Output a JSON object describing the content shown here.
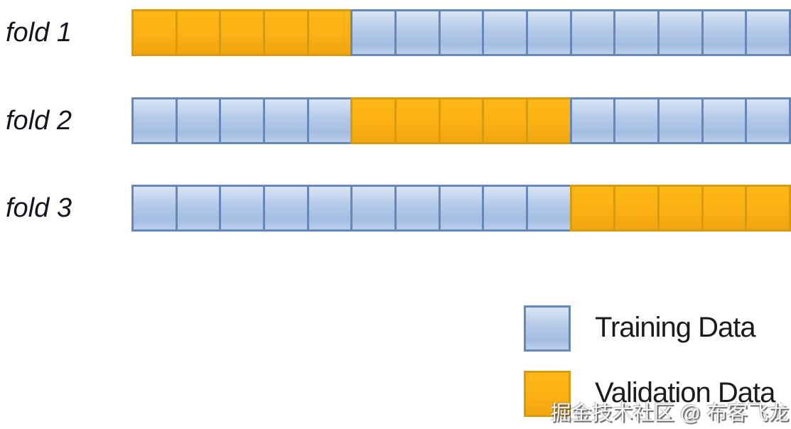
{
  "diagram": {
    "type": "k-fold-cross-validation",
    "num_folds": 3,
    "cells_per_fold": 15,
    "validation_block_size": 5
  },
  "folds": [
    {
      "label": "fold 1",
      "cells": [
        "V",
        "V",
        "V",
        "V",
        "V",
        "T",
        "T",
        "T",
        "T",
        "T",
        "T",
        "T",
        "T",
        "T",
        "T"
      ]
    },
    {
      "label": "fold 2",
      "cells": [
        "T",
        "T",
        "T",
        "T",
        "T",
        "V",
        "V",
        "V",
        "V",
        "V",
        "T",
        "T",
        "T",
        "T",
        "T"
      ]
    },
    {
      "label": "fold 3",
      "cells": [
        "T",
        "T",
        "T",
        "T",
        "T",
        "T",
        "T",
        "T",
        "T",
        "T",
        "V",
        "V",
        "V",
        "V",
        "V"
      ]
    }
  ],
  "legend": {
    "training_label": "Training Data",
    "validation_label": "Validation Data"
  },
  "watermark": {
    "text": "掘金技术社区 @ 布客飞龙"
  },
  "colors": {
    "train_top": "#d8e5f5",
    "train_mid": "#b5cae9",
    "train_low": "#a3bde2",
    "train_bot": "#bccfeb",
    "train_border": "#6787b8",
    "valid_top": "#fdb713",
    "valid_mid": "#fcb014",
    "valid_bot": "#f1a50e",
    "valid_border": "#d79b10",
    "label_text": "#15151f",
    "legend_text": "#1b1b1b"
  }
}
